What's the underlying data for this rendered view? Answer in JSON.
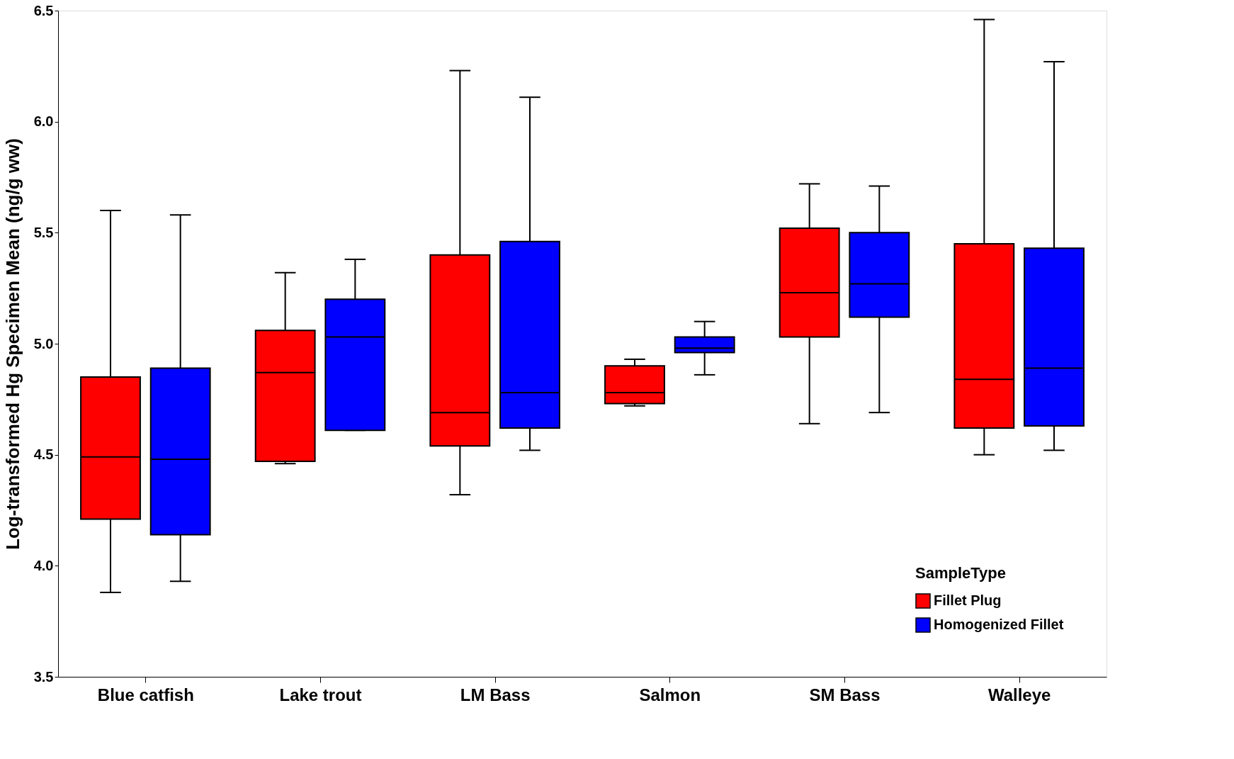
{
  "chart_data": {
    "type": "box",
    "ylabel": "Log-transformed Hg Specimen Mean (ng/g ww)",
    "legend_title": "SampleType",
    "legend": "bottom right",
    "grid": false,
    "categories": [
      "Blue catfish",
      "Lake trout",
      "LM Bass",
      "Salmon",
      "SM Bass",
      "Walleye"
    ],
    "ylim": [
      3.5,
      6.5
    ],
    "yticks": [
      3.5,
      {
        "value": 4,
        "label": "4.0"
      },
      4.5,
      {
        "value": 5,
        "label": "5.0"
      },
      5.5,
      {
        "value": 6,
        "label": "6.0"
      },
      6.5
    ],
    "series": [
      {
        "name": "Fillet Plug",
        "color": "#ff0000",
        "boxes": [
          {
            "low": 3.88,
            "q1": 4.21,
            "median": 4.49,
            "q3": 4.85,
            "high": 5.6
          },
          {
            "low": 4.46,
            "q1": 4.47,
            "median": 4.87,
            "q3": 5.06,
            "high": 5.32
          },
          {
            "low": 4.32,
            "q1": 4.54,
            "median": 4.69,
            "q3": 5.4,
            "high": 6.23
          },
          {
            "low": 4.72,
            "q1": 4.73,
            "median": 4.78,
            "q3": 4.9,
            "high": 4.93
          },
          {
            "low": 4.64,
            "q1": 5.03,
            "median": 5.23,
            "q3": 5.52,
            "high": 5.72
          },
          {
            "low": 4.5,
            "q1": 4.62,
            "median": 4.84,
            "q3": 5.45,
            "high": 6.46
          }
        ]
      },
      {
        "name": "Homogenized Fillet",
        "color": "#0000ff",
        "boxes": [
          {
            "low": 3.93,
            "q1": 4.14,
            "median": 4.48,
            "q3": 4.89,
            "high": 5.58
          },
          {
            "low": 4.61,
            "q1": 4.61,
            "median": 5.03,
            "q3": 5.2,
            "high": 5.38
          },
          {
            "low": 4.52,
            "q1": 4.62,
            "median": 4.78,
            "q3": 5.46,
            "high": 6.11
          },
          {
            "low": 4.86,
            "q1": 4.96,
            "median": 4.98,
            "q3": 5.03,
            "high": 5.1
          },
          {
            "low": 4.69,
            "q1": 5.12,
            "median": 5.27,
            "q3": 5.5,
            "high": 5.71
          },
          {
            "low": 4.52,
            "q1": 4.63,
            "median": 4.89,
            "q3": 5.43,
            "high": 6.27
          }
        ]
      }
    ]
  }
}
